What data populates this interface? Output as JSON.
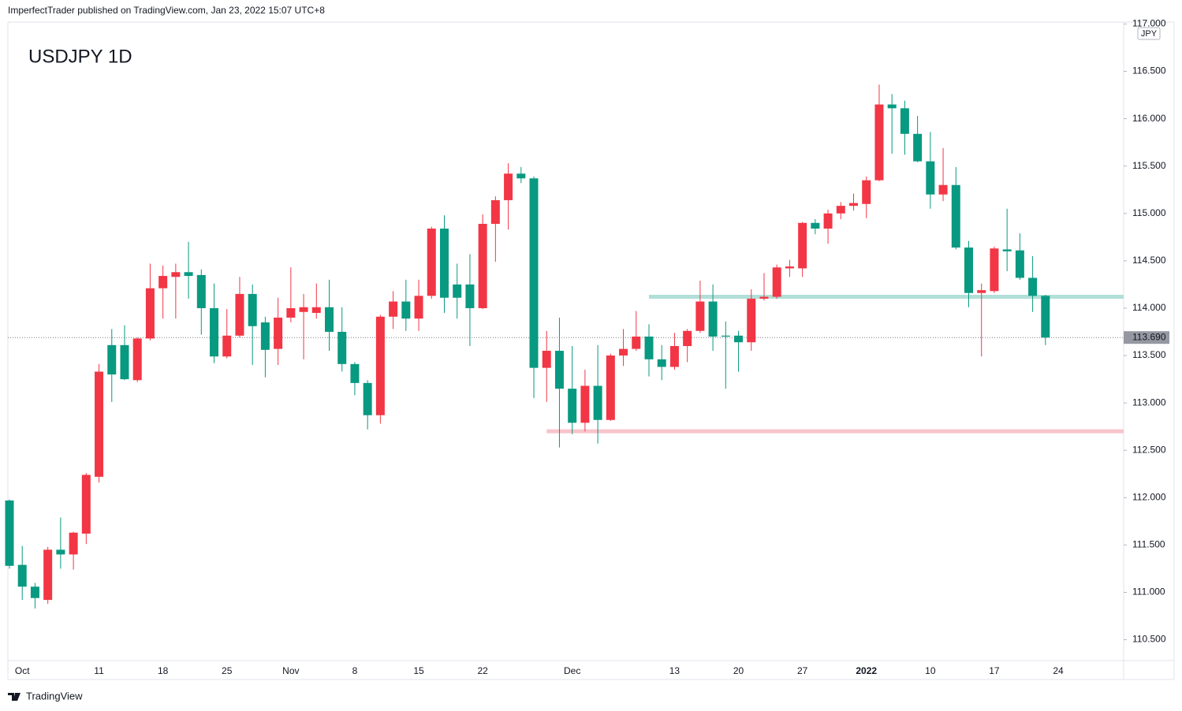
{
  "header": "ImperfectTrader published on TradingView.com, Jan 23, 2022 15:07 UTC+8",
  "footer": "TradingView",
  "chart_data": {
    "type": "candlestick",
    "title": "USDJPY 1D",
    "currency": "JPY",
    "up_color": "#f23645",
    "down_color": "#089981",
    "categories": [
      null,
      "Oct",
      null,
      null,
      null,
      null,
      null,
      "11",
      null,
      null,
      null,
      null,
      "18",
      null,
      null,
      null,
      null,
      "25",
      null,
      null,
      null,
      null,
      "Nov",
      null,
      null,
      null,
      null,
      "8",
      null,
      null,
      null,
      null,
      "15",
      null,
      null,
      null,
      null,
      "22",
      null,
      null,
      null,
      null,
      null,
      null,
      "Dec",
      null,
      null,
      null,
      null,
      null,
      null,
      null,
      "13",
      null,
      null,
      null,
      null,
      "20",
      null,
      null,
      null,
      null,
      "27",
      null,
      null,
      null,
      null,
      "2022",
      null,
      null,
      null,
      null,
      "10",
      null,
      null,
      null,
      null,
      "17",
      null,
      null,
      null,
      null,
      "24"
    ],
    "open": [
      111.97,
      111.29,
      111.06,
      110.92,
      111.45,
      111.4,
      111.62,
      112.22,
      113.61,
      113.61,
      113.24,
      113.68,
      114.21,
      114.33,
      114.38,
      114.35,
      114.0,
      113.49,
      113.71,
      114.15,
      113.85,
      113.57,
      113.9,
      113.96,
      113.95,
      114.01,
      113.75,
      113.41,
      113.21,
      112.87,
      113.91,
      114.07,
      113.89,
      114.13,
      114.84,
      114.25,
      114.25,
      114.0,
      114.89,
      115.14,
      115.42,
      115.37,
      113.37,
      113.55,
      113.15,
      112.79,
      113.18,
      112.82,
      113.5,
      113.57,
      113.7,
      113.46,
      113.38,
      113.6,
      113.76,
      114.07,
      113.71,
      113.71,
      113.64,
      114.1,
      114.12,
      114.42,
      114.42,
      114.9,
      114.84,
      115.0,
      115.08,
      115.1,
      115.35,
      116.15,
      116.11,
      115.84,
      115.55,
      115.2,
      115.3,
      114.64,
      114.16,
      114.18,
      114.62,
      114.61,
      114.32,
      114.13,
      null
    ],
    "high": [
      111.98,
      111.49,
      111.1,
      111.48,
      111.79,
      111.64,
      112.26,
      113.41,
      113.78,
      113.82,
      113.69,
      114.47,
      114.45,
      114.47,
      114.7,
      114.41,
      114.26,
      113.99,
      114.33,
      114.25,
      113.91,
      114.11,
      114.43,
      114.15,
      114.26,
      114.3,
      114.01,
      113.43,
      113.24,
      113.93,
      114.18,
      114.3,
      114.3,
      114.86,
      114.98,
      114.47,
      114.57,
      114.99,
      115.18,
      115.53,
      115.49,
      115.39,
      113.76,
      113.9,
      113.6,
      113.35,
      113.61,
      113.52,
      113.78,
      113.97,
      113.83,
      113.61,
      113.74,
      113.78,
      114.29,
      114.25,
      113.86,
      113.76,
      114.2,
      114.37,
      114.46,
      114.51,
      114.91,
      114.94,
      115.04,
      115.12,
      115.21,
      115.39,
      116.36,
      116.26,
      116.19,
      116.03,
      115.86,
      115.69,
      115.49,
      114.71,
      114.26,
      114.65,
      115.05,
      114.79,
      114.55,
      114.14,
      null
    ],
    "low": [
      111.25,
      110.92,
      110.83,
      110.88,
      111.25,
      111.24,
      111.51,
      112.16,
      113.01,
      113.24,
      113.22,
      113.66,
      113.89,
      113.89,
      114.1,
      113.72,
      113.42,
      113.47,
      113.69,
      113.4,
      113.27,
      113.4,
      113.85,
      113.46,
      113.89,
      113.55,
      113.33,
      113.08,
      112.72,
      112.78,
      113.78,
      113.76,
      113.76,
      114.1,
      113.95,
      113.89,
      113.6,
      113.99,
      114.49,
      114.83,
      115.32,
      113.05,
      113.01,
      112.53,
      112.67,
      112.7,
      112.57,
      112.81,
      113.39,
      113.55,
      113.28,
      113.24,
      113.35,
      113.43,
      113.74,
      113.55,
      113.15,
      113.33,
      113.55,
      114.08,
      114.1,
      114.33,
      114.33,
      114.78,
      114.68,
      114.94,
      115.03,
      114.95,
      115.34,
      115.63,
      115.62,
      115.54,
      115.05,
      115.13,
      114.62,
      114.01,
      113.49,
      114.16,
      114.39,
      114.3,
      113.96,
      113.61,
      null
    ],
    "close": [
      111.28,
      111.06,
      110.94,
      111.45,
      111.4,
      111.63,
      112.24,
      113.33,
      113.3,
      113.25,
      113.68,
      114.21,
      114.34,
      114.38,
      114.34,
      114.0,
      113.49,
      113.71,
      114.15,
      113.81,
      113.56,
      113.9,
      114.0,
      114.01,
      114.01,
      113.75,
      113.41,
      113.21,
      112.87,
      113.91,
      114.07,
      113.89,
      114.13,
      114.84,
      114.11,
      114.11,
      114.0,
      114.89,
      115.14,
      115.42,
      115.37,
      113.37,
      113.55,
      113.15,
      112.79,
      113.18,
      112.82,
      113.5,
      113.57,
      113.7,
      113.46,
      113.38,
      113.6,
      113.76,
      114.07,
      113.7,
      113.7,
      113.64,
      114.1,
      114.12,
      114.43,
      114.44,
      114.9,
      114.84,
      115.0,
      115.08,
      115.11,
      115.35,
      116.15,
      116.11,
      115.84,
      115.55,
      115.2,
      115.3,
      114.64,
      114.16,
      114.19,
      114.63,
      114.6,
      114.32,
      114.13,
      113.69,
      null
    ],
    "ylim": [
      110.28,
      117.02
    ],
    "yticks": [
      {
        "value": 110.5,
        "label": "110.500"
      },
      {
        "value": 111,
        "label": "111.000"
      },
      {
        "value": 111.5,
        "label": "111.500"
      },
      {
        "value": 112,
        "label": "112.000"
      },
      {
        "value": 112.5,
        "label": "112.500"
      },
      {
        "value": 113,
        "label": "113.000"
      },
      {
        "value": 113.5,
        "label": "113.500"
      },
      {
        "value": 114,
        "label": "114.000"
      },
      {
        "value": 114.5,
        "label": "114.500"
      },
      {
        "value": 115,
        "label": "115.000"
      },
      {
        "value": 115.5,
        "label": "115.500"
      },
      {
        "value": 116,
        "label": "116.000"
      },
      {
        "value": 116.5,
        "label": "116.500"
      },
      {
        "value": 117,
        "label": "117.000"
      }
    ],
    "levels": [
      {
        "value": 114.12,
        "start": 50,
        "color": "#b2dfd8"
      },
      {
        "value": 112.7,
        "start": 42,
        "color": "#f8c4cb"
      }
    ],
    "last_price": {
      "value": 113.69,
      "label": "113.690"
    },
    "grid": false
  }
}
